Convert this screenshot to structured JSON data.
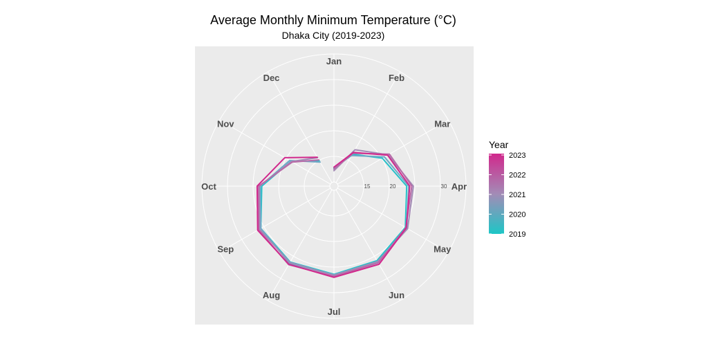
{
  "chart_data": {
    "type": "line",
    "coord": "polar",
    "title": "Average Monthly Minimum Temperature (°C)",
    "subtitle": "Dhaka City (2019-2023)",
    "months": [
      "Jan",
      "Feb",
      "Mar",
      "Apr",
      "May",
      "Jun",
      "Jul",
      "Aug",
      "Sep",
      "Oct",
      "Nov",
      "Dec"
    ],
    "radial_ticks": [
      "15",
      "20",
      "30"
    ],
    "radial_tick_values": [
      15,
      20,
      30
    ],
    "radial_gridlines": [
      10,
      15,
      20,
      25,
      30
    ],
    "radial_range": [
      10,
      30
    ],
    "grid": true,
    "legend": {
      "title": "Year",
      "position": "right",
      "labels": [
        "2023",
        "2022",
        "2021",
        "2020",
        "2019"
      ],
      "colors": {
        "low": "#1dc6c6",
        "high": "#d1288c"
      }
    },
    "series": [
      {
        "name": "2019",
        "color": "#26c1c9",
        "values": [
          12.6,
          16.4,
          20.1,
          23.4,
          25.3,
          26.0,
          26.4,
          26.3,
          25.7,
          23.3,
          18.9,
          14.9
        ]
      },
      {
        "name": "2020",
        "color": "#6fa8c6",
        "values": [
          12.8,
          16.1,
          20.6,
          23.8,
          25.6,
          26.3,
          26.5,
          26.6,
          25.7,
          23.6,
          19.2,
          14.6
        ]
      },
      {
        "name": "2021",
        "color": "#a38bb6",
        "values": [
          12.2,
          17.4,
          21.4,
          24.7,
          25.8,
          26.2,
          26.6,
          26.4,
          26.0,
          23.8,
          18.8,
          15.6
        ]
      },
      {
        "name": "2022",
        "color": "#b86aa8",
        "values": [
          12.5,
          16.6,
          21.7,
          24.4,
          25.4,
          26.5,
          26.8,
          26.9,
          26.2,
          23.9,
          18.6,
          15.1
        ]
      },
      {
        "name": "2023",
        "color": "#d1288c",
        "values": [
          12.9,
          16.8,
          21.3,
          24.0,
          25.5,
          26.8,
          27.0,
          26.8,
          26.4,
          24.2,
          20.3,
          15.7
        ]
      }
    ]
  }
}
